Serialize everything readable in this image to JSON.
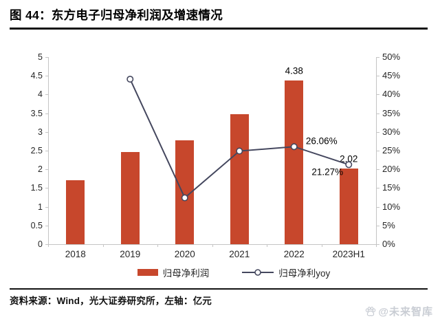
{
  "header": {
    "title": "图 44：东方电子归母净利润及增速情况"
  },
  "chart_data": {
    "type": "bar",
    "subtype": "bar+line combo, dual axis",
    "categories": [
      "2018",
      "2019",
      "2020",
      "2021",
      "2022",
      "2023H1"
    ],
    "series": [
      {
        "name": "归母净利润",
        "type": "bar",
        "axis": "left",
        "values": [
          1.71,
          2.46,
          2.77,
          3.47,
          4.38,
          2.02
        ],
        "point_labels": [
          null,
          null,
          null,
          null,
          "4.38",
          "2.02"
        ]
      },
      {
        "name": "归母净利yoy",
        "type": "line",
        "axis": "right",
        "values": [
          null,
          44.1,
          12.4,
          24.9,
          26.06,
          21.27
        ],
        "point_labels": [
          null,
          null,
          null,
          null,
          "26.06%",
          "21.27%"
        ]
      }
    ],
    "left_axis": {
      "unit": "亿元",
      "min": 0,
      "max": 5,
      "ticks": [
        "0",
        "0.5",
        "1",
        "1.5",
        "2",
        "2.5",
        "3",
        "3.5",
        "4",
        "4.5",
        "5"
      ]
    },
    "right_axis": {
      "min": 0,
      "max": 50,
      "ticks": [
        "0%",
        "5%",
        "10%",
        "15%",
        "20%",
        "25%",
        "30%",
        "35%",
        "40%",
        "45%",
        "50%"
      ]
    },
    "legend": [
      {
        "label": "归母净利润",
        "marker": "bar-swatch"
      },
      {
        "label": "归母净利yoy",
        "marker": "line-open-circle"
      }
    ],
    "grid": false,
    "legend_position": "bottom-center"
  },
  "footer": {
    "source": "资料来源：Wind，光大证券研究所，左轴：亿元",
    "watermark": "@未来智库"
  },
  "colors": {
    "bar": "#C7472C",
    "line": "#44475E",
    "marker_fill": "#FFFFFF",
    "axis_line": "#C4C4C4",
    "tick_text": "#262626",
    "rule": "#121212",
    "watermark": "#C9CDD4"
  }
}
